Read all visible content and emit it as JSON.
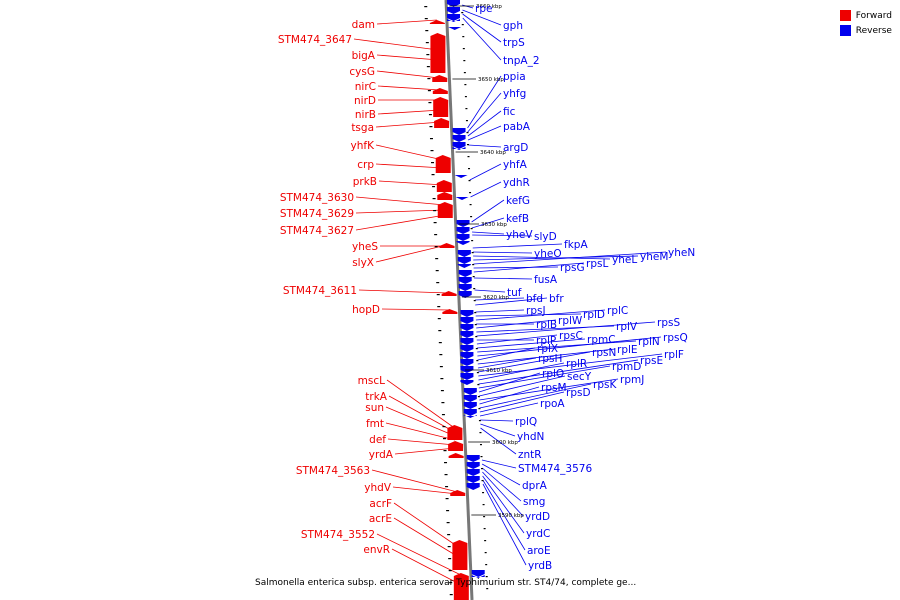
{
  "caption": "Salmonella enterica subsp. enterica serovar Typhimurium str. ST4/74, complete ge...",
  "legend": [
    {
      "label": "Forward",
      "color": "#ee0000"
    },
    {
      "label": "Reverse",
      "color": "#0000ee"
    }
  ],
  "ticks": [
    "3660 kbp",
    "3650 kbp",
    "3640 kbp",
    "3630 kbp",
    "3620 kbp",
    "3610 kbp",
    "3600 kbp",
    "3590 kbp"
  ],
  "forward_genes": [
    "dam",
    "STM474_3647",
    "bigA",
    "cysG",
    "nirC",
    "nirD",
    "nirB",
    "tsga",
    "yhfK",
    "crp",
    "prkB",
    "STM474_3630",
    "STM474_3629",
    "STM474_3627",
    "yheS",
    "slyX",
    "STM474_3611",
    "hopD",
    "mscL",
    "trkA",
    "sun",
    "fmt",
    "def",
    "yrdA",
    "STM474_3563",
    "yhdV",
    "acrF",
    "acrE",
    "STM474_3552",
    "envR"
  ],
  "reverse_genes": [
    "rpe",
    "gph",
    "trpS",
    "tnpA_2",
    "ppia",
    "yhfg",
    "fic",
    "pabA",
    "argD",
    "yhfA",
    "ydhR",
    "kefG",
    "kefB",
    "yheV",
    "slyD",
    "fkpA",
    "yheO",
    "yheL",
    "yheM",
    "yheN",
    "rpsG",
    "rpsL",
    "fusA",
    "tuf",
    "bfd",
    "bfr",
    "rpsJ",
    "rplD",
    "rplC",
    "rplB",
    "rplW",
    "rplV",
    "rpsS",
    "rplP",
    "rpsC",
    "rpmC",
    "rplN",
    "rpsQ",
    "rplX",
    "rplE",
    "rpsH",
    "rpsN",
    "rplF",
    "rplR",
    "rpsE",
    "rpmD",
    "rplO",
    "secY",
    "rpmJ",
    "rpsM",
    "rpsK",
    "rpsD",
    "rpoA",
    "rplQ",
    "yhdN",
    "zntR",
    "STM474_3576",
    "dprA",
    "smg",
    "yrdD",
    "yrdC",
    "aroE",
    "yrdB"
  ]
}
